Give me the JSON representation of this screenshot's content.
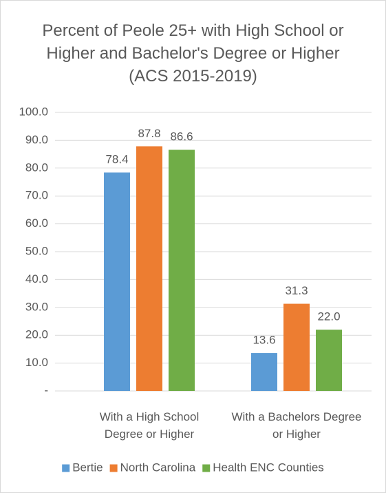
{
  "chart_data": {
    "type": "bar",
    "title": "Percent of Peole 25+ with High School or Higher and Bachelor's Degree or Higher (ACS 2015-2019)",
    "categories": [
      "With a High School Degree or Higher",
      "With a Bachelors Degree or Higher"
    ],
    "series": [
      {
        "name": "Bertie",
        "color": "#5b9bd5",
        "values": [
          78.4,
          13.6
        ],
        "value_labels": [
          "78.4",
          "13.6"
        ]
      },
      {
        "name": "North Carolina",
        "color": "#ed7d31",
        "values": [
          87.8,
          31.3
        ],
        "value_labels": [
          "87.8",
          "31.3"
        ]
      },
      {
        "name": "Health ENC Counties",
        "color": "#70ad47",
        "values": [
          86.6,
          22
        ],
        "value_labels": [
          "86.6",
          "22.0"
        ]
      }
    ],
    "ylim": [
      0,
      100
    ],
    "yticks": [
      {
        "value": 0,
        "label": "-"
      },
      {
        "value": 10,
        "label": "10.0"
      },
      {
        "value": 20,
        "label": "20.0"
      },
      {
        "value": 30,
        "label": "30.0"
      },
      {
        "value": 40,
        "label": "40.0"
      },
      {
        "value": 50,
        "label": "50.0"
      },
      {
        "value": 60,
        "label": "60.0"
      },
      {
        "value": 70,
        "label": "70.0"
      },
      {
        "value": 80,
        "label": "80.0"
      },
      {
        "value": 90,
        "label": "90.0"
      },
      {
        "value": 100,
        "label": "100.0"
      }
    ],
    "grid": true,
    "legend": "bottom"
  }
}
